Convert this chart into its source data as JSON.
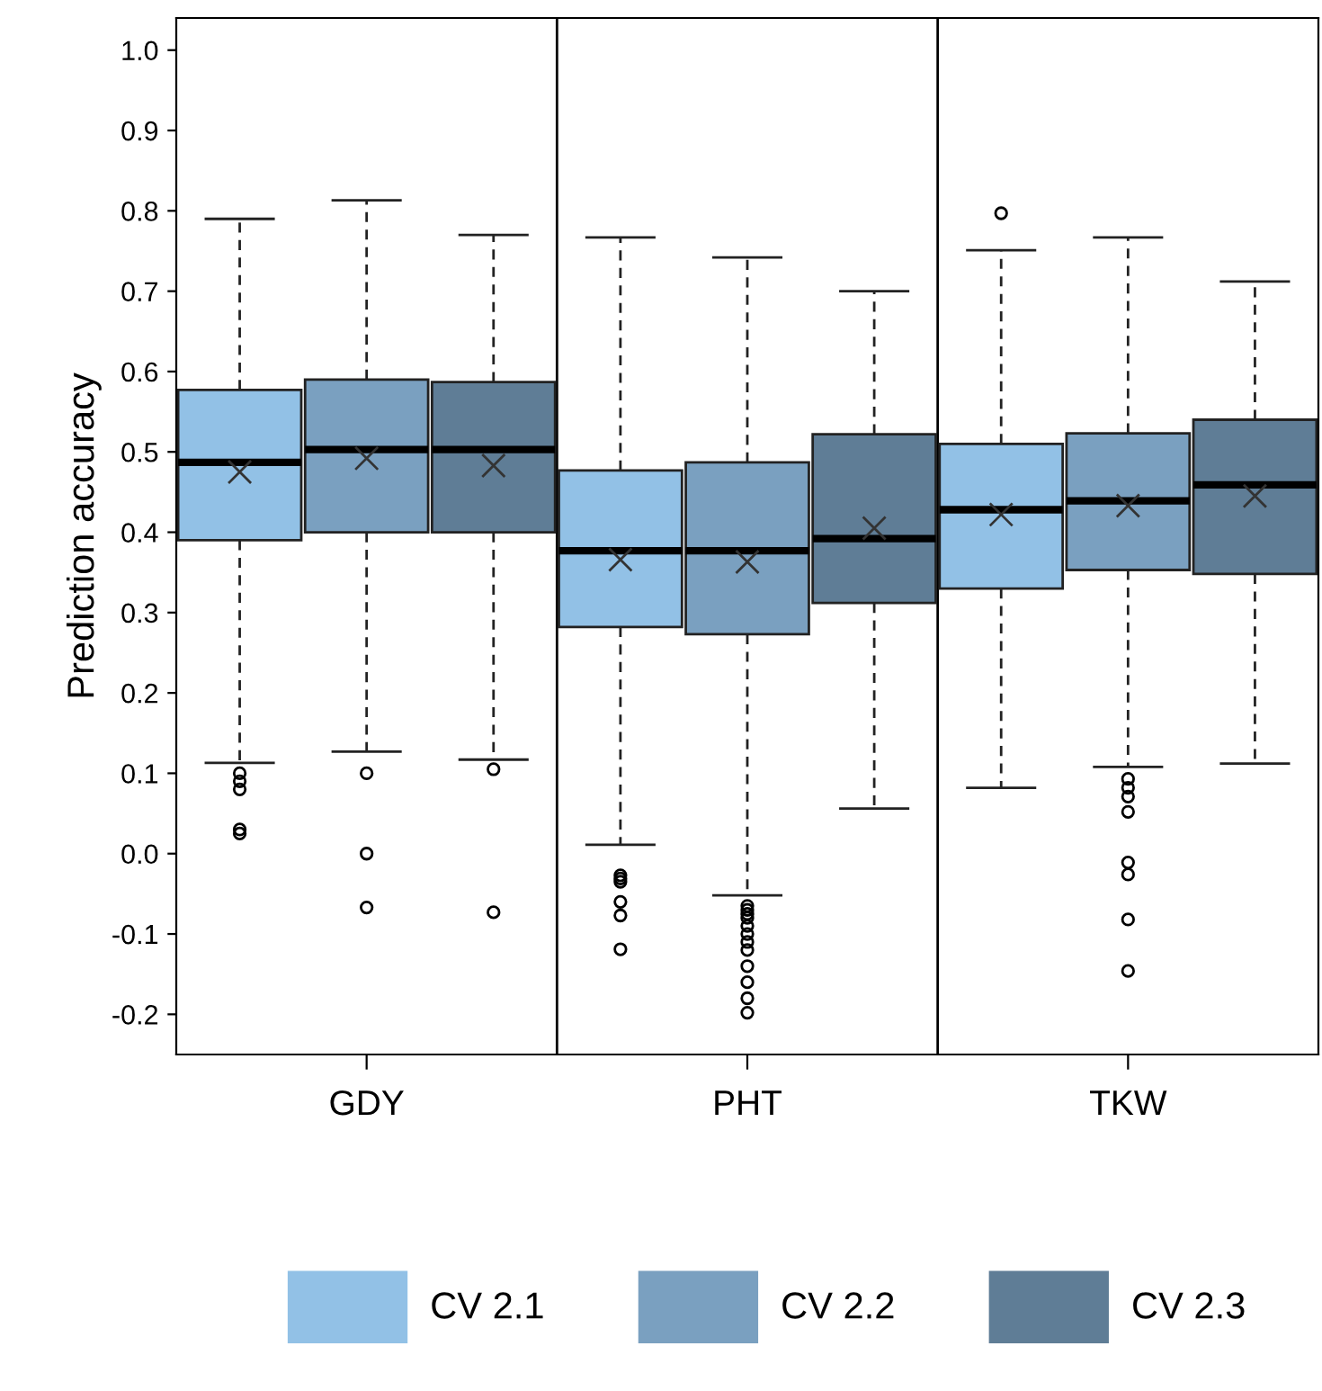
{
  "chart_data": {
    "type": "box",
    "ylabel": "Prediction accuracy",
    "categories": [
      null,
      "GDY",
      null,
      null,
      "PHT",
      null,
      null,
      "TKW",
      null
    ],
    "ylim": [
      -0.25,
      1.04
    ],
    "yticks": [
      {
        "value": -0.2,
        "label": "-0.2"
      },
      {
        "value": -0.1,
        "label": "-0.1"
      },
      {
        "value": 0.0,
        "label": "0.0"
      },
      0.1,
      0.2,
      0.3,
      0.4,
      0.5,
      0.6,
      0.7,
      0.8,
      0.9,
      {
        "value": 1.0,
        "label": "1.0"
      }
    ],
    "legend": "bottom",
    "grid": false,
    "series": [
      {
        "name": "CV 2.1",
        "color": "#92c1e6",
        "boxes": [
          {
            "low": 0.113,
            "q1": 0.39,
            "median": 0.487,
            "q3": 0.577,
            "high": 0.79,
            "mean": 0.475,
            "outliers": [
              0.1,
              0.09,
              0.08,
              0.03,
              0.025
            ]
          },
          null,
          null,
          {
            "low": 0.011,
            "q1": 0.282,
            "median": 0.377,
            "q3": 0.477,
            "high": 0.767,
            "mean": 0.366,
            "outliers": [
              -0.027,
              -0.031,
              -0.035,
              -0.06,
              -0.077,
              -0.119
            ]
          },
          null,
          null,
          {
            "low": 0.082,
            "q1": 0.33,
            "median": 0.428,
            "q3": 0.51,
            "high": 0.751,
            "mean": 0.422,
            "outliers": [
              0.797
            ]
          },
          null,
          null
        ]
      },
      {
        "name": "CV 2.2",
        "color": "#7aa0c0",
        "boxes": [
          null,
          {
            "low": 0.127,
            "q1": 0.4,
            "median": 0.503,
            "q3": 0.59,
            "high": 0.813,
            "mean": 0.492,
            "outliers": [
              0.1,
              0.0,
              -0.067
            ]
          },
          null,
          null,
          {
            "low": -0.052,
            "q1": 0.273,
            "median": 0.377,
            "q3": 0.487,
            "high": 0.742,
            "mean": 0.363,
            "outliers": [
              -0.065,
              -0.07,
              -0.075,
              -0.08,
              -0.09,
              -0.1,
              -0.11,
              -0.12,
              -0.14,
              -0.16,
              -0.18,
              -0.198
            ]
          },
          null,
          null,
          {
            "low": 0.108,
            "q1": 0.353,
            "median": 0.439,
            "q3": 0.523,
            "high": 0.767,
            "mean": 0.433,
            "outliers": [
              0.093,
              0.082,
              0.071,
              0.052,
              -0.011,
              -0.026,
              -0.082,
              -0.146
            ]
          },
          null
        ]
      },
      {
        "name": "CV 2.3",
        "color": "#5f7d96",
        "boxes": [
          null,
          null,
          {
            "low": 0.117,
            "q1": 0.4,
            "median": 0.503,
            "q3": 0.587,
            "high": 0.77,
            "mean": 0.483,
            "outliers": [
              0.105,
              -0.073
            ]
          },
          null,
          null,
          {
            "low": 0.056,
            "q1": 0.312,
            "median": 0.392,
            "q3": 0.522,
            "high": 0.7,
            "mean": 0.405
          },
          null,
          null,
          {
            "low": 0.112,
            "q1": 0.348,
            "median": 0.459,
            "q3": 0.54,
            "high": 0.712,
            "mean": 0.445
          }
        ]
      }
    ]
  }
}
